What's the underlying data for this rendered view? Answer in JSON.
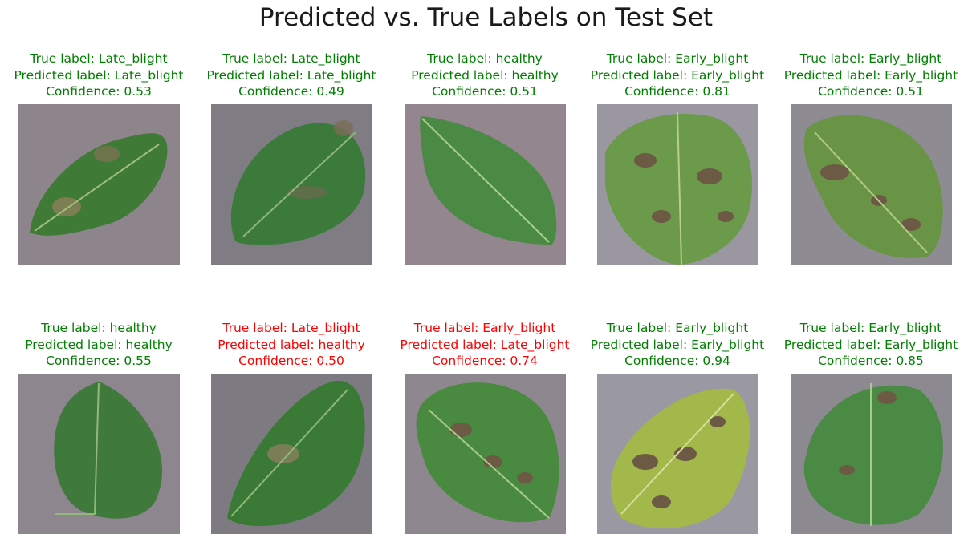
{
  "title": "Predicted vs. True Labels on Test Set",
  "colors": {
    "correct": "#008000",
    "wrong": "#ff0000"
  },
  "panels": [
    {
      "true_label": "True label: Late_blight",
      "predicted": "Predicted label: Late_blight",
      "confidence": "Confidence: 0.53",
      "correct": true,
      "leaf": "late_blight"
    },
    {
      "true_label": "True label: Late_blight",
      "predicted": "Predicted label: Late_blight",
      "confidence": "Confidence: 0.49",
      "correct": true,
      "leaf": "late_blight"
    },
    {
      "true_label": "True label: healthy",
      "predicted": "Predicted label: healthy",
      "confidence": "Confidence: 0.51",
      "correct": true,
      "leaf": "healthy"
    },
    {
      "true_label": "True label: Early_blight",
      "predicted": "Predicted label: Early_blight",
      "confidence": "Confidence: 0.81",
      "correct": true,
      "leaf": "early_blight"
    },
    {
      "true_label": "True label: Early_blight",
      "predicted": "Predicted label: Early_blight",
      "confidence": "Confidence: 0.51",
      "correct": true,
      "leaf": "early_blight"
    },
    {
      "true_label": "True label: healthy",
      "predicted": "Predicted label: healthy",
      "confidence": "Confidence: 0.55",
      "correct": true,
      "leaf": "healthy"
    },
    {
      "true_label": "True label: Late_blight",
      "predicted": "Predicted label: healthy",
      "confidence": "Confidence: 0.50",
      "correct": false,
      "leaf": "late_blight"
    },
    {
      "true_label": "True label: Early_blight",
      "predicted": "Predicted label: Late_blight",
      "confidence": "Confidence: 0.74",
      "correct": false,
      "leaf": "early_blight"
    },
    {
      "true_label": "True label: Early_blight",
      "predicted": "Predicted label: Early_blight",
      "confidence": "Confidence: 0.94",
      "correct": true,
      "leaf": "early_blight_yellow"
    },
    {
      "true_label": "True label: Early_blight",
      "predicted": "Predicted label: Early_blight",
      "confidence": "Confidence: 0.85",
      "correct": true,
      "leaf": "early_blight"
    }
  ]
}
